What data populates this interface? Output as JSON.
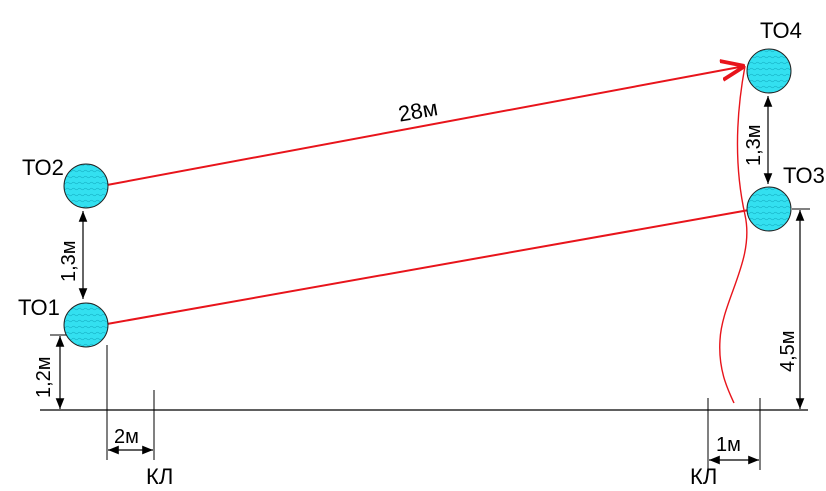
{
  "diagram": {
    "nodes": {
      "to1": "ТО1",
      "to2": "ТО2",
      "to3": "ТО3",
      "to4": "ТО4"
    },
    "dimensions": {
      "main_run": "28м",
      "to1_to2": "1,3м",
      "to3_to4": "1,3м",
      "to1_height": "1,2м",
      "to3_height": "4,5м",
      "left_offset": "2м",
      "right_offset": "1м"
    },
    "markers": {
      "left_kl": "КЛ",
      "right_kl": "КЛ"
    },
    "colors": {
      "pipe": "#e8141b",
      "node_fill": "#33e0f0",
      "node_stroke": "#222222",
      "dim_line": "#000000"
    }
  }
}
